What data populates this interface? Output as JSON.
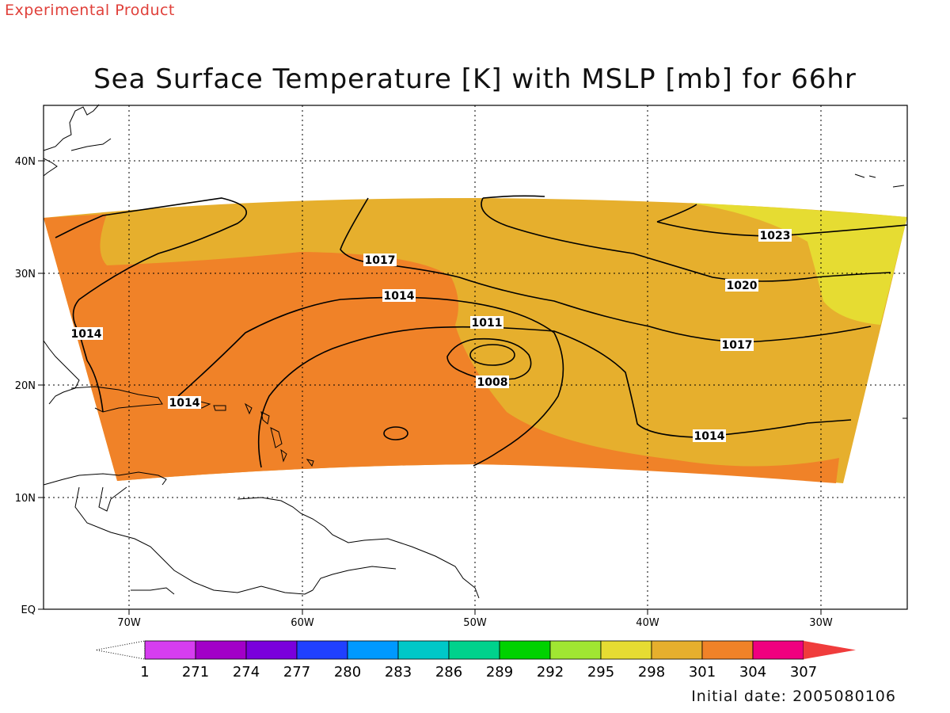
{
  "banner": "Experimental Product",
  "title": "Sea Surface Temperature [K] with MSLP [mb] for 66hr",
  "footer": "Initial date: 2005080106",
  "axes": {
    "lat_labels": [
      "40N",
      "30N",
      "20N",
      "10N",
      "EQ"
    ],
    "lon_labels": [
      "70W",
      "60W",
      "50W",
      "40W",
      "30W"
    ]
  },
  "isobar_labels": [
    {
      "label": "1023"
    },
    {
      "label": "1020"
    },
    {
      "label": "1017"
    },
    {
      "label": "1017"
    },
    {
      "label": "1014"
    },
    {
      "label": "1014"
    },
    {
      "label": "1014"
    },
    {
      "label": "1014"
    },
    {
      "label": "1011"
    },
    {
      "label": "1008"
    }
  ],
  "colorbar": {
    "labels": [
      "1",
      "271",
      "274",
      "277",
      "280",
      "283",
      "286",
      "289",
      "292",
      "295",
      "298",
      "301",
      "304",
      "307"
    ],
    "colors": [
      "#d63df0",
      "#a200c8",
      "#7a00dc",
      "#2040ff",
      "#0099ff",
      "#00c8c8",
      "#00d28c",
      "#00d200",
      "#a0e632",
      "#e6dc32",
      "#e6af2d",
      "#f08228",
      "#f0007f",
      "#f03c3c"
    ]
  },
  "colors": {
    "sst_301": "#e6af2d",
    "sst_304": "#f08228",
    "sst_298": "#e6dc32",
    "banner": "#e0403a"
  }
}
